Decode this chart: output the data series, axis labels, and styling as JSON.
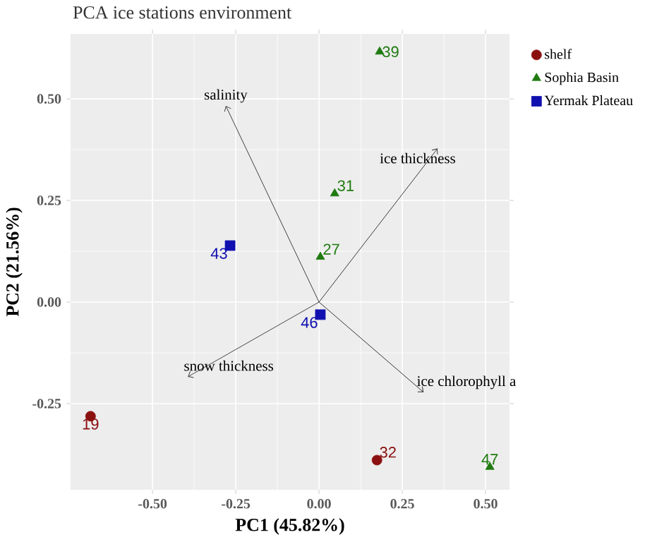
{
  "chart_data": {
    "type": "scatter",
    "title": "PCA ice stations environment",
    "xlabel": "PC1 (45.82%)",
    "ylabel": "PC2 (21.56%)",
    "xlim": [
      -0.746,
      0.572
    ],
    "ylim": [
      -0.462,
      0.66
    ],
    "xticks": [
      {
        "value": -0.5,
        "label": "-0.50"
      },
      {
        "value": -0.25,
        "label": "-0.25"
      },
      {
        "value": 0,
        "label": "0.00"
      },
      {
        "value": 0.25,
        "label": "0.25"
      },
      {
        "value": 0.5,
        "label": "0.50"
      }
    ],
    "yticks": [
      {
        "value": -0.25,
        "label": "-0.25"
      },
      {
        "value": 0,
        "label": "0.00"
      },
      {
        "value": 0.25,
        "label": "0.25"
      },
      {
        "value": 0.5,
        "label": "0.50"
      }
    ],
    "grid": true,
    "legend": "right",
    "series": [
      {
        "name": "shelf",
        "color": "#8b1010",
        "marker": "circle",
        "x": [
          -0.686,
          0.174
        ],
        "values": [
          -0.281,
          -0.389
        ]
      },
      {
        "name": "Sophia Basin",
        "color": "#1f7a10",
        "marker": "triangle",
        "x": [
          0.182,
          0.047,
          0.004,
          0.513
        ],
        "values": [
          0.616,
          0.267,
          0.111,
          -0.406
        ]
      },
      {
        "name": "Yermak Plateau",
        "color": "#1010b0",
        "marker": "square",
        "x": [
          -0.267,
          0.004
        ],
        "values": [
          0.139,
          -0.031
        ]
      },
      {
        "name": "salinity",
        "type": "line",
        "color": "#404040",
        "marker": "none",
        "x": [
          0,
          -0.28
        ],
        "values": [
          0,
          0.483
        ]
      },
      {
        "name": "ice thickness",
        "type": "line",
        "color": "#3a3a3a",
        "marker": "none",
        "x": [
          0,
          0.356
        ],
        "values": [
          0,
          0.378
        ]
      },
      {
        "name": "snow thickness",
        "type": "line",
        "color": "#464646",
        "marker": "none",
        "x": [
          0,
          -0.394
        ],
        "values": [
          0,
          -0.184
        ]
      },
      {
        "name": "ice chlorophyll a",
        "type": "line",
        "color": "#333333",
        "marker": "none",
        "x": [
          0,
          0.314
        ],
        "values": [
          0,
          -0.222
        ]
      }
    ],
    "annotations": [
      {
        "text": "19",
        "x": -0.686,
        "y": -0.281
      },
      {
        "text": "32",
        "x": 0.174,
        "y": -0.389
      },
      {
        "text": "39",
        "x": 0.182,
        "y": 0.616
      },
      {
        "text": "31",
        "x": 0.047,
        "y": 0.267
      },
      {
        "text": "27",
        "x": 0.004,
        "y": 0.111
      },
      {
        "text": "47",
        "x": 0.513,
        "y": -0.406
      },
      {
        "text": "43",
        "x": -0.267,
        "y": 0.139
      },
      {
        "text": "46",
        "x": 0.004,
        "y": -0.031
      }
    ]
  }
}
